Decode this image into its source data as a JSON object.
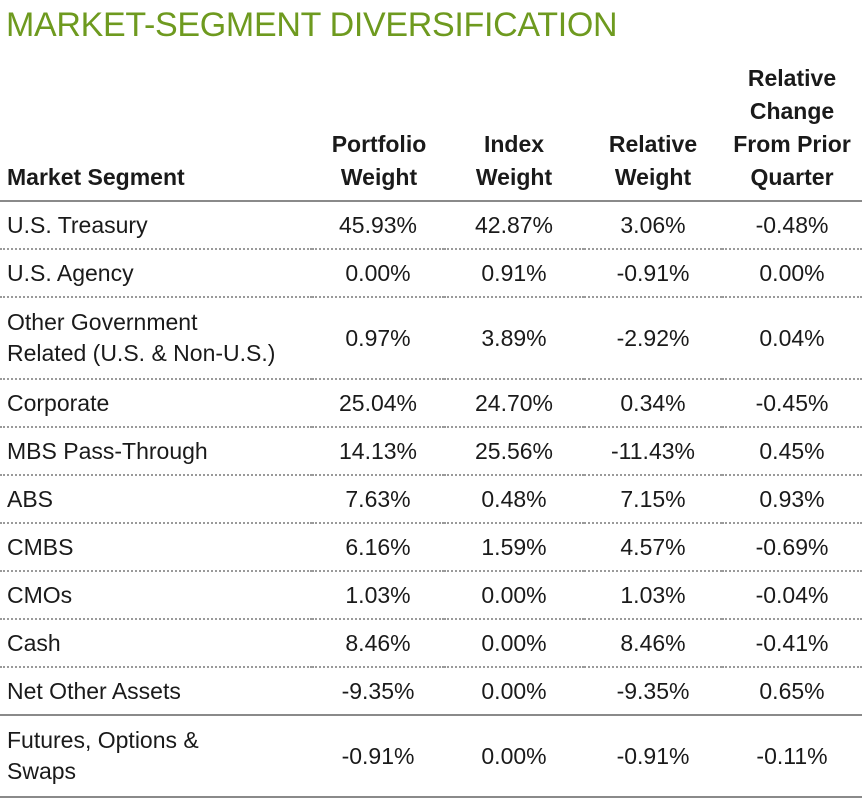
{
  "title": "MARKET-SEGMENT DIVERSIFICATION",
  "columns": {
    "segment": "Market Segment",
    "portfolio_weight": [
      "Portfolio",
      "Weight"
    ],
    "index_weight": [
      "Index",
      "Weight"
    ],
    "relative_weight": [
      "Relative",
      "Weight"
    ],
    "relative_change": [
      "Relative",
      "Change",
      "From Prior",
      "Quarter"
    ]
  },
  "rows": [
    {
      "segment": [
        "U.S. Treasury"
      ],
      "portfolio_weight": "45.93%",
      "index_weight": "42.87%",
      "relative_weight": "3.06%",
      "relative_change": "-0.48%"
    },
    {
      "segment": [
        "U.S. Agency"
      ],
      "portfolio_weight": "0.00%",
      "index_weight": "0.91%",
      "relative_weight": "-0.91%",
      "relative_change": "0.00%"
    },
    {
      "segment": [
        "Other Government",
        "Related (U.S. & Non-U.S.)"
      ],
      "portfolio_weight": "0.97%",
      "index_weight": "3.89%",
      "relative_weight": "-2.92%",
      "relative_change": "0.04%"
    },
    {
      "segment": [
        "Corporate"
      ],
      "portfolio_weight": "25.04%",
      "index_weight": "24.70%",
      "relative_weight": "0.34%",
      "relative_change": "-0.45%"
    },
    {
      "segment": [
        "MBS Pass-Through"
      ],
      "portfolio_weight": "14.13%",
      "index_weight": "25.56%",
      "relative_weight": "-11.43%",
      "relative_change": "0.45%"
    },
    {
      "segment": [
        "ABS"
      ],
      "portfolio_weight": "7.63%",
      "index_weight": "0.48%",
      "relative_weight": "7.15%",
      "relative_change": "0.93%"
    },
    {
      "segment": [
        "CMBS"
      ],
      "portfolio_weight": "6.16%",
      "index_weight": "1.59%",
      "relative_weight": "4.57%",
      "relative_change": "-0.69%"
    },
    {
      "segment": [
        "CMOs"
      ],
      "portfolio_weight": "1.03%",
      "index_weight": "0.00%",
      "relative_weight": "1.03%",
      "relative_change": "-0.04%"
    },
    {
      "segment": [
        "Cash"
      ],
      "portfolio_weight": "8.46%",
      "index_weight": "0.00%",
      "relative_weight": "8.46%",
      "relative_change": "-0.41%"
    },
    {
      "segment": [
        "Net Other Assets"
      ],
      "portfolio_weight": "-9.35%",
      "index_weight": "0.00%",
      "relative_weight": "-9.35%",
      "relative_change": "0.65%"
    },
    {
      "segment": [
        "Futures, Options &",
        "Swaps"
      ],
      "portfolio_weight": "-0.91%",
      "index_weight": "0.00%",
      "relative_weight": "-0.91%",
      "relative_change": "-0.11%"
    }
  ]
}
